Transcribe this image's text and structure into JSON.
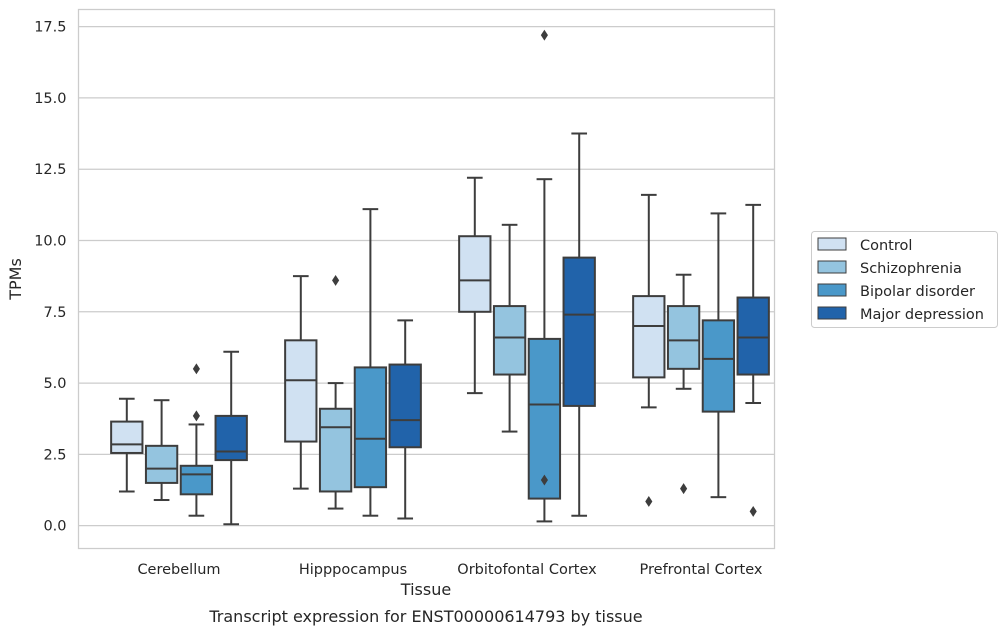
{
  "chart_data": {
    "type": "boxplot",
    "title": "Transcript expression for ENST00000614793 by tissue",
    "xlabel": "Tissue",
    "ylabel": "TPMs",
    "ylim": [
      -0.8,
      18.1
    ],
    "yticks": [
      0.0,
      2.5,
      5.0,
      7.5,
      10.0,
      12.5,
      15.0,
      17.5
    ],
    "ytick_labels": [
      "0.0",
      "2.5",
      "5.0",
      "7.5",
      "10.0",
      "12.5",
      "15.0",
      "17.5"
    ],
    "grid": true,
    "legend_position": "right",
    "categories": [
      "Cerebellum",
      "Hipppocampus",
      "Orbitofontal Cortex",
      "Prefrontal Cortex"
    ],
    "series": [
      {
        "name": "Control",
        "color": "#d0e1f2",
        "boxes": [
          {
            "whislo": 1.2,
            "q1": 2.55,
            "med": 2.85,
            "q3": 3.65,
            "whishi": 4.45,
            "fliers": []
          },
          {
            "whislo": 1.3,
            "q1": 2.95,
            "med": 5.1,
            "q3": 6.5,
            "whishi": 8.75,
            "fliers": []
          },
          {
            "whislo": 4.65,
            "q1": 7.5,
            "med": 8.6,
            "q3": 10.15,
            "whishi": 12.2,
            "fliers": []
          },
          {
            "whislo": 4.15,
            "q1": 5.2,
            "med": 7.0,
            "q3": 8.05,
            "whishi": 11.6,
            "fliers": [
              0.85
            ]
          }
        ]
      },
      {
        "name": "Schizophrenia",
        "color": "#94c4df",
        "boxes": [
          {
            "whislo": 0.9,
            "q1": 1.5,
            "med": 2.0,
            "q3": 2.8,
            "whishi": 4.4,
            "fliers": []
          },
          {
            "whislo": 0.6,
            "q1": 1.2,
            "med": 3.45,
            "q3": 4.1,
            "whishi": 5.0,
            "fliers": [
              8.6
            ]
          },
          {
            "whislo": 3.3,
            "q1": 5.3,
            "med": 6.6,
            "q3": 7.7,
            "whishi": 10.55,
            "fliers": []
          },
          {
            "whislo": 4.8,
            "q1": 5.5,
            "med": 6.5,
            "q3": 7.7,
            "whishi": 8.8,
            "fliers": [
              1.3
            ]
          }
        ]
      },
      {
        "name": "Bipolar disorder",
        "color": "#4a98c9",
        "boxes": [
          {
            "whislo": 0.35,
            "q1": 1.1,
            "med": 1.8,
            "q3": 2.1,
            "whishi": 3.55,
            "fliers": [
              3.85,
              5.5
            ]
          },
          {
            "whislo": 0.35,
            "q1": 1.35,
            "med": 3.05,
            "q3": 5.55,
            "whishi": 11.1,
            "fliers": []
          },
          {
            "whislo": 0.15,
            "q1": 0.95,
            "med": 4.25,
            "q3": 6.55,
            "whishi": 12.15,
            "fliers": [
              1.6,
              17.2
            ]
          },
          {
            "whislo": 1.0,
            "q1": 4.0,
            "med": 5.85,
            "q3": 7.2,
            "whishi": 10.95,
            "fliers": []
          }
        ]
      },
      {
        "name": "Major depression",
        "color": "#2163aa",
        "boxes": [
          {
            "whislo": 0.05,
            "q1": 2.3,
            "med": 2.6,
            "q3": 3.85,
            "whishi": 6.1,
            "fliers": []
          },
          {
            "whislo": 0.25,
            "q1": 2.75,
            "med": 3.7,
            "q3": 5.65,
            "whishi": 7.2,
            "fliers": []
          },
          {
            "whislo": 0.35,
            "q1": 4.2,
            "med": 7.4,
            "q3": 9.4,
            "whishi": 13.75,
            "fliers": []
          },
          {
            "whislo": 4.3,
            "q1": 5.3,
            "med": 6.6,
            "q3": 8.0,
            "whishi": 11.25,
            "fliers": [
              0.5
            ]
          }
        ]
      }
    ]
  }
}
